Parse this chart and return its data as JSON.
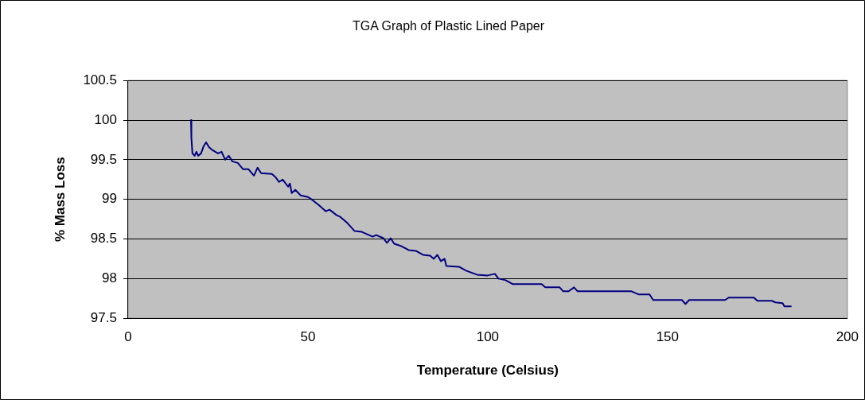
{
  "chart_data": {
    "type": "line",
    "title": "TGA Graph of Plastic Lined Paper",
    "xlabel": "Temperature (Celsius)",
    "ylabel": "% Mass Loss",
    "xlim": [
      0,
      200
    ],
    "xticks": [
      0,
      50,
      100,
      150,
      200
    ],
    "ylim": [
      97.5,
      100.5
    ],
    "yticks": [
      97.5,
      98,
      98.5,
      99,
      99.5,
      100,
      100.5
    ],
    "grid": "y",
    "legend": false,
    "marker": "none",
    "line_style": "solid",
    "series": [
      {
        "color": "#000080",
        "x": [
          17.5,
          17.6,
          17.9,
          18.5,
          19.0,
          19.5,
          20.3,
          21.0,
          21.7,
          22.5,
          23.5,
          25,
          26,
          27,
          28,
          29,
          30.5,
          32,
          33.5,
          35,
          36,
          37,
          40,
          41,
          42,
          43,
          44.5,
          45,
          45.5,
          46.5,
          48,
          50,
          51,
          53,
          55,
          56,
          58,
          59,
          61,
          63,
          65,
          67,
          68,
          69,
          71,
          72,
          73,
          74,
          76,
          78,
          80,
          82,
          84,
          85,
          86,
          87,
          88,
          88.5,
          92,
          94,
          97,
          100,
          102,
          103,
          105,
          107,
          115,
          116,
          120,
          121,
          122.5,
          124,
          125,
          140,
          142,
          145,
          146,
          154,
          155,
          156,
          166,
          167,
          174,
          175,
          179,
          180,
          182,
          182.5,
          184.3
        ],
        "values": [
          100.0,
          99.78,
          99.58,
          99.55,
          99.6,
          99.55,
          99.58,
          99.67,
          99.72,
          99.66,
          99.62,
          99.58,
          99.6,
          99.5,
          99.55,
          99.48,
          99.46,
          99.38,
          99.38,
          99.3,
          99.4,
          99.33,
          99.32,
          99.28,
          99.22,
          99.25,
          99.16,
          99.2,
          99.08,
          99.12,
          99.05,
          99.03,
          99.0,
          98.93,
          98.85,
          98.87,
          98.8,
          98.78,
          98.7,
          98.6,
          98.59,
          98.55,
          98.53,
          98.55,
          98.51,
          98.45,
          98.51,
          98.44,
          98.41,
          98.36,
          98.35,
          98.3,
          98.29,
          98.25,
          98.3,
          98.22,
          98.25,
          98.16,
          98.15,
          98.1,
          98.05,
          98.04,
          98.06,
          98.0,
          97.98,
          97.93,
          97.93,
          97.89,
          97.89,
          97.84,
          97.84,
          97.89,
          97.84,
          97.84,
          97.8,
          97.8,
          97.73,
          97.73,
          97.68,
          97.73,
          97.73,
          97.76,
          97.76,
          97.72,
          97.72,
          97.7,
          97.69,
          97.65,
          97.65
        ]
      }
    ]
  }
}
